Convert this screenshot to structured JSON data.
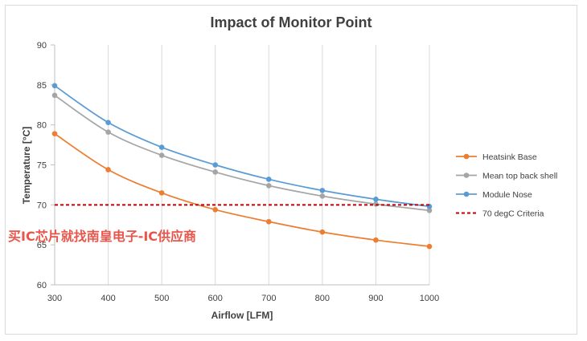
{
  "chart_data": {
    "type": "line",
    "title": "Impact of Monitor Point",
    "xlabel": "Airflow [LFM]",
    "ylabel": "Temperature [°C]",
    "x": [
      300,
      400,
      500,
      600,
      700,
      800,
      900,
      1000
    ],
    "xlim": [
      300,
      1000
    ],
    "ylim": [
      60,
      90
    ],
    "x_ticks": [
      "300",
      "400",
      "500",
      "600",
      "700",
      "800",
      "900",
      "1000"
    ],
    "y_ticks": [
      "60",
      "65",
      "70",
      "75",
      "80",
      "85",
      "90"
    ],
    "grid": "vertical",
    "legend_position": "right",
    "series": [
      {
        "name": "Heatsink Base",
        "color": "#ed7d31",
        "values": [
          78.9,
          74.4,
          71.5,
          69.4,
          67.9,
          66.6,
          65.6,
          64.8
        ],
        "style": "smooth-marker"
      },
      {
        "name": "Mean top back shell",
        "color": "#a5a5a5",
        "values": [
          83.7,
          79.1,
          76.2,
          74.1,
          72.4,
          71.1,
          70.1,
          69.3
        ],
        "style": "smooth-marker"
      },
      {
        "name": "Module Nose",
        "color": "#5b9bd5",
        "values": [
          84.9,
          80.3,
          77.2,
          75.0,
          73.2,
          71.8,
          70.7,
          69.8
        ],
        "style": "smooth-marker"
      },
      {
        "name": "70 degC Criteria",
        "color": "#c00000",
        "values": [
          70,
          70,
          70,
          70,
          70,
          70,
          70,
          70
        ],
        "style": "dashed"
      }
    ]
  },
  "watermark": "买IC芯片就找南皇电子-IC供应商"
}
